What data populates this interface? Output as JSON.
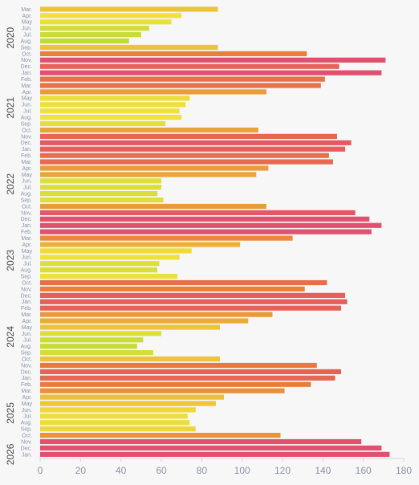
{
  "chart_data": {
    "type": "bar",
    "orientation": "horizontal",
    "xlim": [
      0,
      180
    ],
    "x_ticks": [
      "0",
      "20",
      "40",
      "60",
      "80",
      "100",
      "120",
      "140",
      "160",
      "180"
    ],
    "grid": false,
    "categories": [
      "Mar.",
      "Apr.",
      "May",
      "Jun.",
      "Jul.",
      "Aug.",
      "Sep.",
      "Oct.",
      "Nov.",
      "Dec.",
      "Jan.",
      "Feb.",
      "Mar.",
      "Apr.",
      "May",
      "Jun.",
      "Jul.",
      "Aug.",
      "Sep.",
      "Oct.",
      "Nov.",
      "Dec.",
      "Jan.",
      "Feb.",
      "Mar.",
      "Apr.",
      "May",
      "Jun.",
      "Jul.",
      "Aug.",
      "Sep.",
      "Oct.",
      "Nov.",
      "Dec.",
      "Jan.",
      "Feb.",
      "Mar.",
      "Apr.",
      "May",
      "Jun.",
      "Jul.",
      "Aug.",
      "Sep.",
      "Oct.",
      "Nov.",
      "Dec.",
      "Jan.",
      "Feb.",
      "Mar.",
      "Apr.",
      "May",
      "Jun.",
      "Jul.",
      "Aug.",
      "Sep.",
      "Oct.",
      "Nov.",
      "Dec.",
      "Jan.",
      "Feb.",
      "Mar.",
      "Apr.",
      "May",
      "Jun.",
      "Jul.",
      "Aug.",
      "Sep.",
      "Oct.",
      "Nov.",
      "Dec.",
      "Jan."
    ],
    "values": [
      88,
      70,
      65,
      54,
      50,
      44,
      88,
      132,
      171,
      148,
      169,
      141,
      139,
      112,
      74,
      72,
      69,
      70,
      62,
      108,
      147,
      154,
      151,
      143,
      145,
      113,
      107,
      60,
      60,
      58,
      61,
      112,
      156,
      163,
      169,
      164,
      125,
      99,
      75,
      69,
      59,
      58,
      68,
      142,
      131,
      151,
      152,
      149,
      115,
      103,
      89,
      60,
      51,
      48,
      56,
      89,
      137,
      149,
      146,
      134,
      121,
      91,
      87,
      77,
      73,
      74,
      77,
      119,
      159,
      169,
      173
    ],
    "year_labels": [
      {
        "label": "2020",
        "start": 0,
        "end": 9
      },
      {
        "label": "2021",
        "start": 10,
        "end": 21
      },
      {
        "label": "2022",
        "start": 22,
        "end": 33
      },
      {
        "label": "2023",
        "start": 34,
        "end": 45
      },
      {
        "label": "2024",
        "start": 46,
        "end": 57
      },
      {
        "label": "2025",
        "start": 58,
        "end": 69
      },
      {
        "label": "2026",
        "start": 70,
        "end": 70
      }
    ],
    "color_scale": {
      "low": "#b7d935",
      "mid_low": "#f0e23a",
      "mid": "#e9a83a",
      "mid_high": "#ea7a3a",
      "high": "#e3506f"
    }
  }
}
